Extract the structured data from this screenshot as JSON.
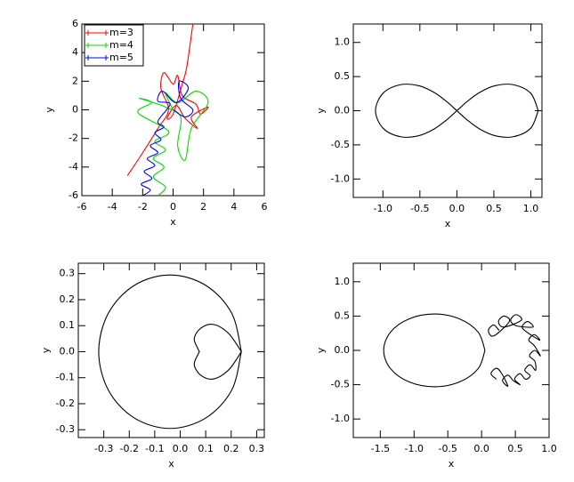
{
  "chart_data": [
    {
      "type": "line",
      "xlabel": "x",
      "ylabel": "y",
      "xlim": [
        -6,
        6
      ],
      "ylim": [
        -6,
        6
      ],
      "xticks": [
        -6,
        -4,
        -2,
        0,
        2,
        4,
        6
      ],
      "yticks": [
        -6,
        -4,
        -2,
        0,
        2,
        4,
        6
      ],
      "legend": "upper left",
      "series": [
        {
          "name": "m=3",
          "color": "#ff0000",
          "x": [
            -3,
            -2,
            -1,
            -0.3,
            -0.8,
            -0.6,
            0,
            0.3,
            0.6,
            1.5,
            1.8,
            2.3,
            1.2,
            1.6,
            0.8,
            0.2,
            -0.4,
            0,
            0.6,
            0.9,
            1.3
          ],
          "values": [
            -4.6,
            -3,
            -1.3,
            0,
            1.5,
            2.6,
            1.8,
            2.4,
            1,
            0.4,
            -0.3,
            0.2,
            -0.5,
            -1.3,
            -0.6,
            0.3,
            -0.6,
            -0.3,
            1.8,
            3,
            6
          ]
        },
        {
          "name": "m=4",
          "color": "#00dd00",
          "x": [
            -1,
            -0.5,
            -1.3,
            -0.6,
            -1.3,
            -0.5,
            -1.2,
            -0.3,
            -2.3,
            -1.4,
            -2.2,
            -0.5,
            0.5,
            0.3,
            0.8,
            1.2,
            2.3,
            1.5,
            0.3,
            -0.5,
            0
          ],
          "values": [
            -6,
            -5.4,
            -4.7,
            -4,
            -3.4,
            -2.8,
            -2.2,
            -1.5,
            -0.2,
            0.5,
            0.8,
            0.2,
            -0.5,
            -2.5,
            -3.5,
            -1.3,
            0.5,
            1.3,
            0.5,
            1.2,
            0
          ]
        },
        {
          "name": "m=5",
          "color": "#0000ff",
          "x": [
            -2,
            -1.5,
            -2.1,
            -1.4,
            -1.9,
            -1.2,
            -1.7,
            -1,
            -1.5,
            -0.8,
            -1.2,
            -0.6,
            -1,
            -0.2,
            -1,
            -0.7,
            0.2,
            1,
            0.4,
            0.5,
            1.3,
            0.8,
            0
          ],
          "values": [
            -6,
            -5.6,
            -5.2,
            -4.8,
            -4.3,
            -3.9,
            -3.4,
            -3,
            -2.5,
            -2.1,
            -1.6,
            -1.2,
            -0.8,
            0.4,
            0.6,
            1.3,
            0.5,
            1.5,
            2,
            0.8,
            0,
            -0.5,
            0
          ]
        }
      ]
    },
    {
      "type": "line",
      "xlabel": "x",
      "ylabel": "y",
      "xlim": [
        -1.4,
        1.15
      ],
      "ylim": [
        -1.27,
        1.27
      ],
      "xticks": [
        {
          "value": -1,
          "label": "-1.0"
        },
        -0.5,
        {
          "value": 0,
          "label": "0.0"
        },
        0.5,
        {
          "value": 1,
          "label": "1.0"
        }
      ],
      "yticks": [
        {
          "value": -1,
          "label": "-1.0"
        },
        -0.5,
        {
          "value": 0,
          "label": "0.0"
        },
        0.5,
        {
          "value": 1,
          "label": "1.0"
        }
      ],
      "series": [
        {
          "color": "#000000",
          "x": [
            1.1,
            0.996,
            0.762,
            0.519,
            0.314,
            0.147,
            0,
            -0.147,
            -0.314,
            -0.519,
            -0.762,
            -0.996,
            -1.1,
            -0.996,
            -0.762,
            -0.519,
            -0.314,
            -0.147,
            0,
            0.147,
            0.314,
            0.519,
            0.762,
            0.996,
            1.1
          ],
          "values": [
            0,
            0.258,
            0.381,
            0.367,
            0.272,
            0.142,
            0,
            -0.142,
            -0.272,
            -0.367,
            -0.381,
            -0.258,
            0,
            0.258,
            0.381,
            0.367,
            0.272,
            0.142,
            0,
            -0.142,
            -0.272,
            -0.367,
            -0.381,
            -0.258,
            0
          ]
        }
      ]
    },
    {
      "type": "line",
      "xlabel": "x",
      "ylabel": "y",
      "xlim": [
        -0.4,
        0.33
      ],
      "ylim": [
        -0.33,
        0.34
      ],
      "xticks": [
        -0.3,
        -0.2,
        -0.1,
        {
          "value": 0,
          "label": "0.0"
        },
        0.1,
        0.2,
        0.3
      ],
      "yticks": [
        -0.3,
        -0.2,
        -0.1,
        {
          "value": 0,
          "label": "0.0"
        },
        0.1,
        0.2,
        0.3
      ],
      "series": [
        {
          "color": "#000000",
          "x": [
            0.24,
            0.202,
            0.1,
            -0.04,
            -0.18,
            -0.282,
            -0.32,
            -0.282,
            -0.18,
            -0.04,
            0.1,
            0.202,
            0.24
          ],
          "values": [
            0,
            0.148,
            0.255,
            0.295,
            0.255,
            0.148,
            0,
            -0.148,
            -0.255,
            -0.295,
            -0.255,
            -0.148,
            0
          ]
        },
        {
          "color": "#000000",
          "x": [
            0.24,
            0.19,
            0.13,
            0.08,
            0.055,
            0.07,
            0.075,
            0.07,
            0.055,
            0.08,
            0.13,
            0.19,
            0.24
          ],
          "values": [
            0,
            0.07,
            0.105,
            0.09,
            0.05,
            0.01,
            0,
            -0.01,
            -0.05,
            -0.09,
            -0.105,
            -0.07,
            0
          ]
        }
      ]
    },
    {
      "type": "line",
      "xlabel": "x",
      "ylabel": "y",
      "xlim": [
        -1.9,
        1.0
      ],
      "ylim": [
        -1.27,
        1.27
      ],
      "xticks": [
        -1.5,
        {
          "value": -1,
          "label": "-1.0"
        },
        -0.5,
        {
          "value": 0,
          "label": "0.0"
        },
        0.5,
        {
          "value": 1,
          "label": "1.0"
        }
      ],
      "yticks": [
        {
          "value": -1,
          "label": "-1.0"
        },
        -0.5,
        {
          "value": 0,
          "label": "0.0"
        },
        0.5,
        {
          "value": 1,
          "label": "1.0"
        }
      ],
      "series": [
        {
          "color": "#000000",
          "x": [
            0.05,
            -0.05,
            -0.325,
            -0.7,
            -1.075,
            -1.35,
            -1.45,
            -1.35,
            -1.075,
            -0.7,
            -0.325,
            -0.05,
            0.05
          ],
          "values": [
            0,
            0.265,
            0.459,
            0.53,
            0.459,
            0.265,
            0,
            -0.265,
            -0.459,
            -0.53,
            -0.459,
            -0.265,
            0
          ]
        },
        {
          "color": "#000000",
          "x": [
            0.26,
            0.18,
            0.1,
            0.18,
            0.41,
            0.33,
            0.25,
            0.33,
            0.59,
            0.51,
            0.43,
            0.51,
            0.76,
            0.68,
            0.6,
            0.68,
            0.86,
            0.78,
            0.7,
            0.78,
            0.87,
            0.79,
            0.71,
            0.79,
            0.8,
            0.72,
            0.64,
            0.72,
            0.65,
            0.57,
            0.49,
            0.57,
            0.47,
            0.39,
            0.31,
            0.39,
            0.3,
            0.22,
            0.14,
            0.22
          ],
          "values": [
            0.29,
            0.37,
            0.29,
            0.21,
            0.42,
            0.5,
            0.42,
            0.34,
            0.44,
            0.52,
            0.44,
            0.36,
            0.34,
            0.42,
            0.34,
            0.26,
            0.15,
            0.23,
            0.15,
            0.07,
            -0.08,
            0,
            -0.08,
            -0.16,
            -0.29,
            -0.21,
            -0.29,
            -0.37,
            -0.42,
            -0.34,
            -0.42,
            -0.5,
            -0.44,
            -0.36,
            -0.44,
            -0.52,
            -0.34,
            -0.26,
            -0.34,
            -0.42
          ]
        }
      ]
    }
  ]
}
